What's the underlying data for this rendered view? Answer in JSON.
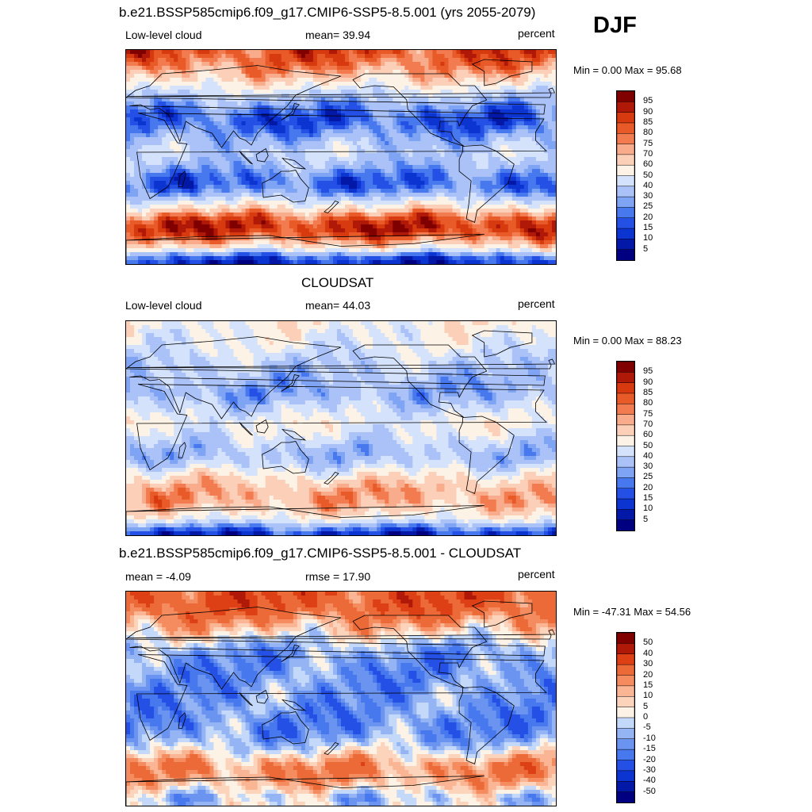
{
  "season": "DJF",
  "panels": [
    {
      "title": "b.e21.BSSP585cmip6.f09_g17.CMIP6-SSP5-8.5.001 (yrs 2055-2079)",
      "left_label": "Low-level cloud",
      "center_label": "mean=  39.94",
      "right_label": "percent",
      "minmax": "Min =    0.00 Max =  95.68",
      "colorbar_ticks": [
        "95",
        "90",
        "85",
        "80",
        "75",
        "70",
        "60",
        "50",
        "40",
        "30",
        "25",
        "20",
        "15",
        "10",
        "5"
      ],
      "colormap": "cloud",
      "zonal_mean_profile": [
        85,
        82,
        78,
        70,
        60,
        48,
        38,
        28,
        20,
        18,
        22,
        30,
        36,
        40,
        36,
        30,
        22,
        20,
        28,
        45,
        62,
        80,
        90,
        88,
        75,
        55,
        20,
        10
      ]
    },
    {
      "title": "CLOUDSAT",
      "left_label": "Low-level cloud",
      "center_label": "mean=  44.03",
      "right_label": "percent",
      "minmax": "Min =    0.00 Max =  88.23",
      "colorbar_ticks": [
        "95",
        "90",
        "85",
        "80",
        "75",
        "70",
        "60",
        "50",
        "40",
        "30",
        "25",
        "20",
        "15",
        "10",
        "5"
      ],
      "colormap": "cloud",
      "zonal_mean_profile": [
        55,
        52,
        50,
        48,
        45,
        40,
        38,
        35,
        32,
        30,
        35,
        42,
        48,
        52,
        48,
        42,
        36,
        34,
        40,
        52,
        62,
        70,
        72,
        70,
        62,
        50,
        25,
        10
      ]
    },
    {
      "title": "b.e21.BSSP585cmip6.f09_g17.CMIP6-SSP5-8.5.001 - CLOUDSAT",
      "left_label": "mean =  -4.09",
      "center_label": "rmse =  17.90",
      "right_label": "percent",
      "minmax": "Min = -47.31 Max =  54.56",
      "colorbar_ticks": [
        "50",
        "40",
        "30",
        "20",
        "15",
        "10",
        "5",
        "0",
        "-5",
        "-10",
        "-15",
        "-20",
        "-30",
        "-40",
        "-50"
      ],
      "colormap": "diff",
      "zonal_mean_profile": [
        30,
        30,
        28,
        22,
        15,
        8,
        0,
        -7,
        -12,
        -12,
        -13,
        -12,
        -12,
        -12,
        -12,
        -12,
        -14,
        -14,
        -12,
        -7,
        0,
        10,
        18,
        18,
        13,
        5,
        -5,
        0
      ]
    }
  ],
  "colors": {
    "cloud": [
      "#000080",
      "#0418a8",
      "#0c34d0",
      "#2450e6",
      "#4878ee",
      "#80a4f4",
      "#aac2f8",
      "#d4e2fc",
      "#fdf2e6",
      "#fcd0b8",
      "#f8ac8c",
      "#f27c50",
      "#e85a28",
      "#d83a10",
      "#b01808",
      "#800000"
    ],
    "diff": [
      "#000080",
      "#0418a8",
      "#0c34d0",
      "#2450e6",
      "#4878ee",
      "#6a94f0",
      "#94b4f4",
      "#c4d8fa",
      "#fdf2e6",
      "#fcd4bc",
      "#fab694",
      "#f48c60",
      "#ec6a38",
      "#de4016",
      "#b01808",
      "#800000"
    ]
  }
}
